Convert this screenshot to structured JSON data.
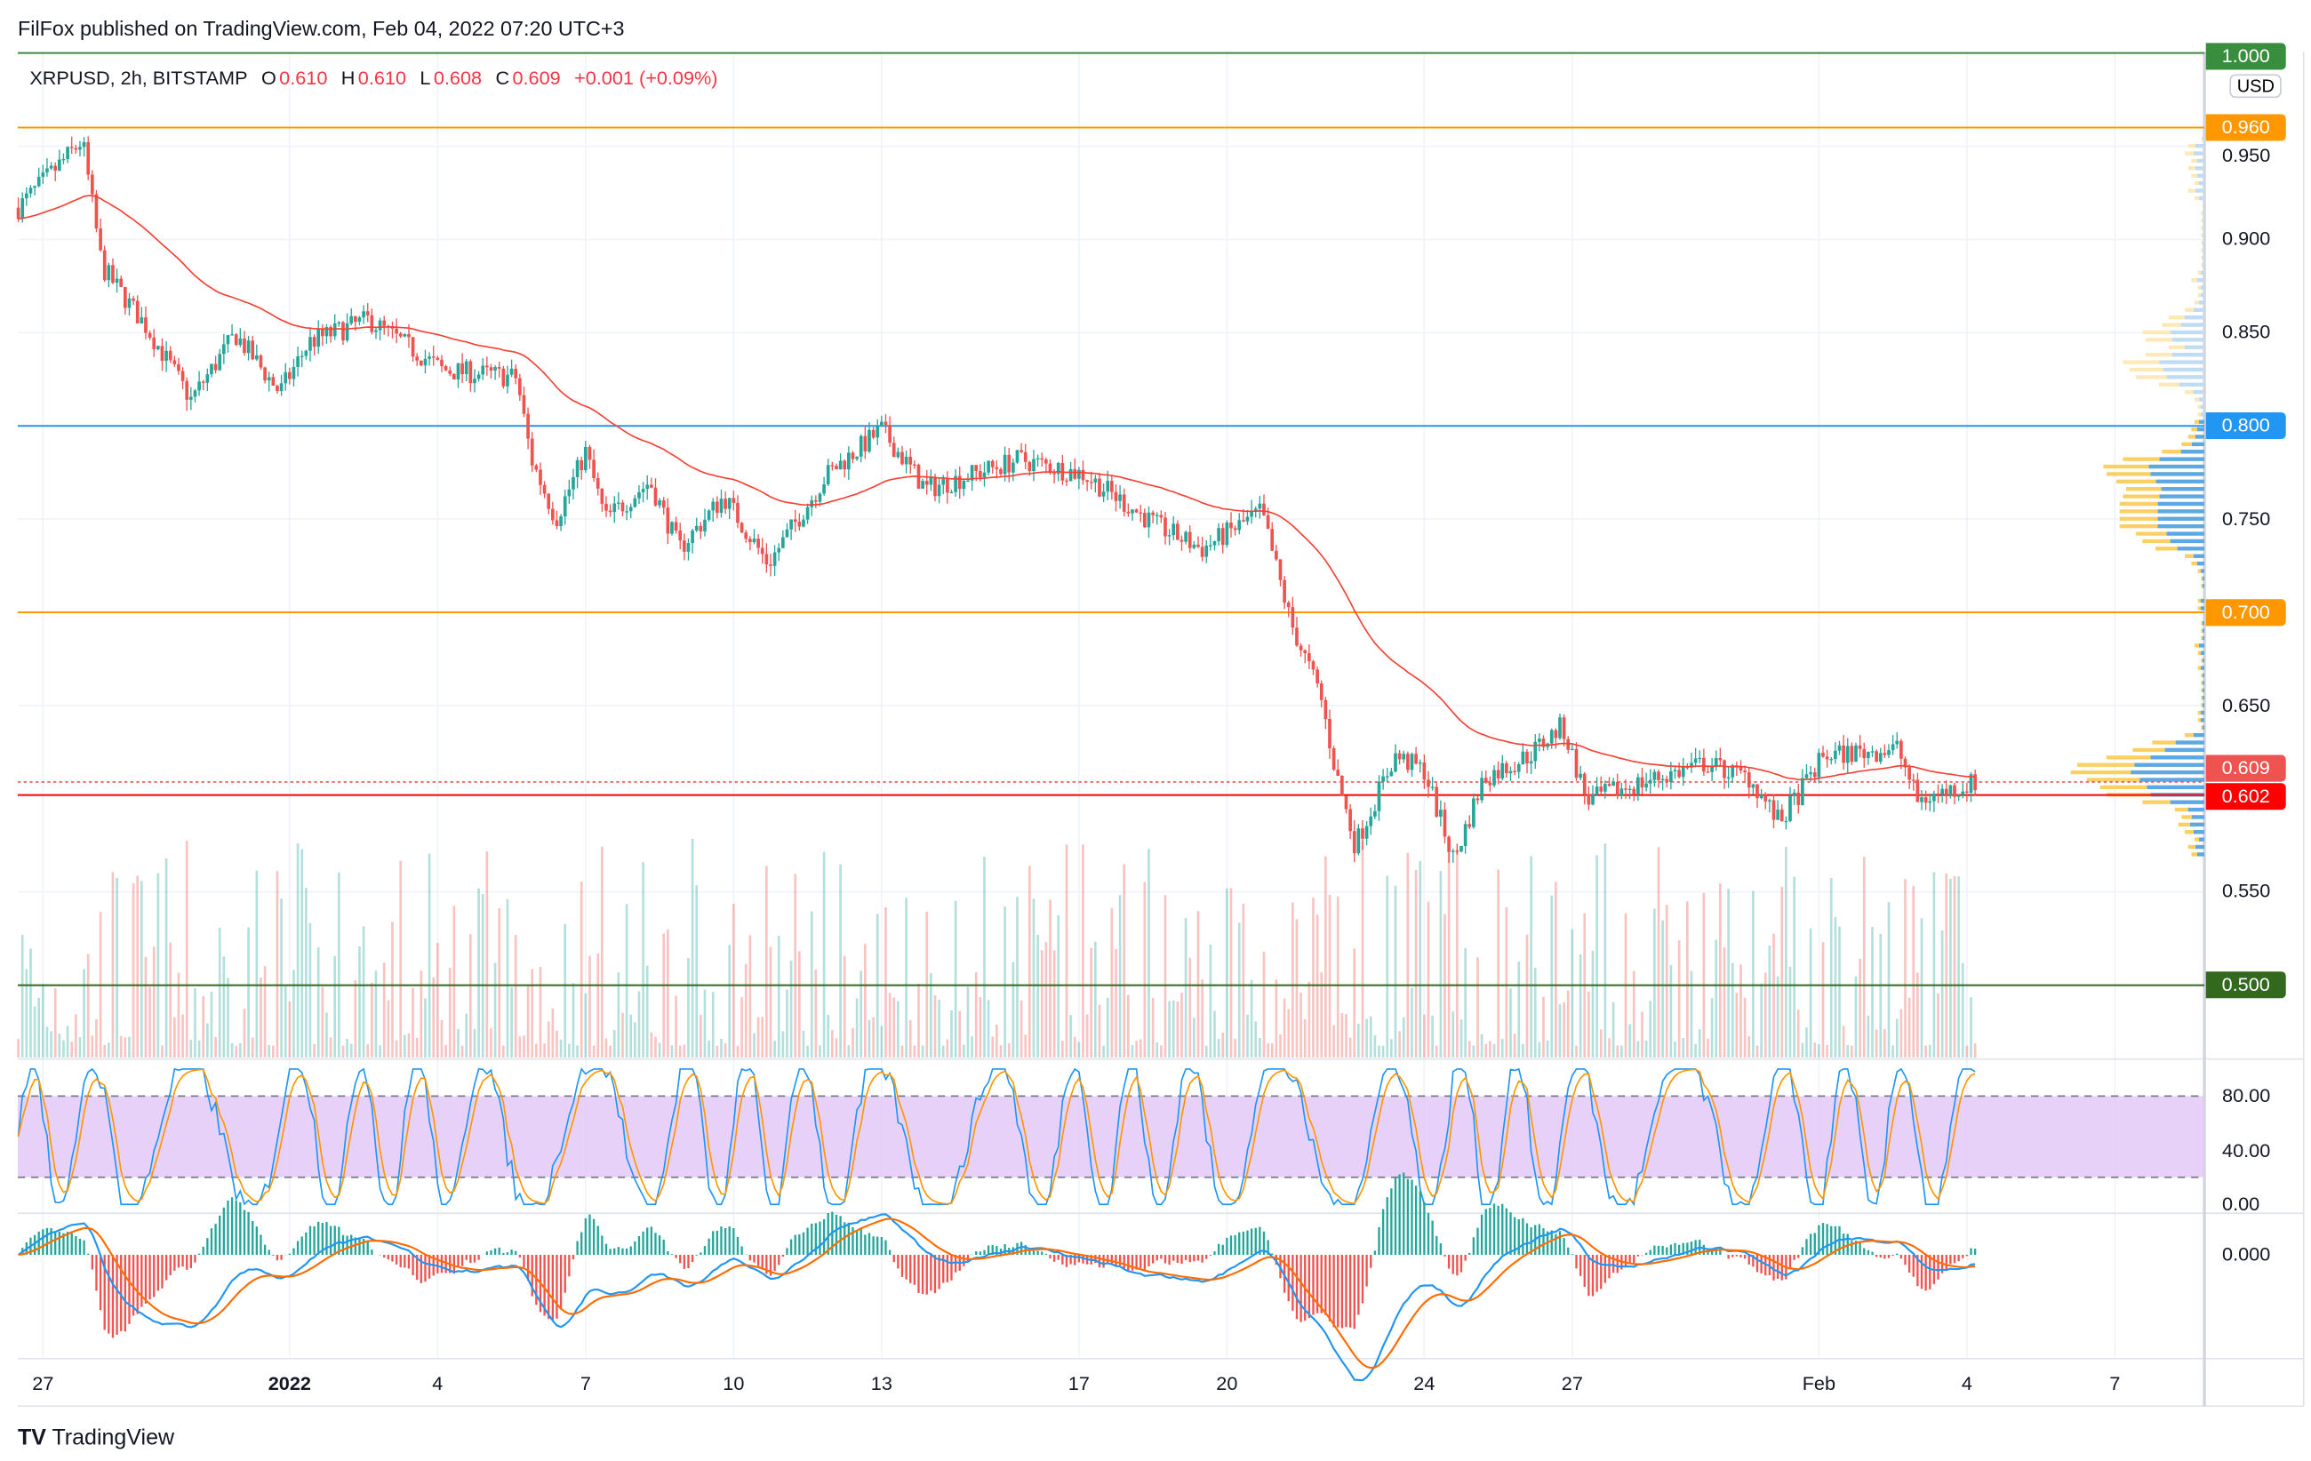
{
  "header": {
    "publisher": "FilFox published on TradingView.com, Feb 04, 2022 07:20 UTC+3"
  },
  "legend": {
    "symbol": "XRPUSD, 2h, BITSTAMP",
    "o_label": "O",
    "o": "0.610",
    "h_label": "H",
    "h": "0.610",
    "l_label": "L",
    "l": "0.608",
    "c_label": "C",
    "c": "0.609",
    "change": "+0.001 (+0.09%)"
  },
  "price_axis": {
    "currency": "USD",
    "ticks": [
      "0.950",
      "0.900",
      "0.850",
      "0.750",
      "0.650",
      "0.550"
    ]
  },
  "levels": [
    {
      "label": "1.000",
      "price": 1.0,
      "color": "#388e3c"
    },
    {
      "label": "0.960",
      "price": 0.96,
      "color": "#ff9800"
    },
    {
      "label": "0.800",
      "price": 0.8,
      "color": "#2196f3"
    },
    {
      "label": "0.700",
      "price": 0.7,
      "color": "#ff9800"
    },
    {
      "label": "0.609",
      "price": 0.609,
      "color": "#ef5350"
    },
    {
      "label": "0.602",
      "price": 0.602,
      "color": "#ff0000"
    },
    {
      "label": "0.500",
      "price": 0.5,
      "color": "#33691e"
    }
  ],
  "rsi_axis": {
    "ticks": [
      "80.00",
      "40.00",
      "0.00"
    ]
  },
  "macd_axis": {
    "ticks": [
      "0.000"
    ]
  },
  "time_axis": {
    "labels": [
      {
        "text": "27",
        "day": 0
      },
      {
        "text": "2022",
        "day": 5
      },
      {
        "text": "4",
        "day": 8
      },
      {
        "text": "7",
        "day": 11
      },
      {
        "text": "10",
        "day": 14
      },
      {
        "text": "13",
        "day": 17
      },
      {
        "text": "17",
        "day": 21
      },
      {
        "text": "20",
        "day": 24
      },
      {
        "text": "24",
        "day": 28
      },
      {
        "text": "27",
        "day": 31
      },
      {
        "text": "Feb",
        "day": 36
      },
      {
        "text": "4",
        "day": 39
      },
      {
        "text": "7",
        "day": 42
      }
    ]
  },
  "footer": {
    "brand": "TradingView"
  },
  "chart_data": {
    "type": "candlestick",
    "title": "XRPUSD, 2h, BITSTAMP",
    "x_unit": "days since Dec 27, 2021",
    "ylim": [
      0.5,
      1.0
    ],
    "price_path": [
      [
        -0.5,
        0.917
      ],
      [
        0.8,
        0.953
      ],
      [
        1.2,
        0.885
      ],
      [
        2.1,
        0.853
      ],
      [
        3.0,
        0.814
      ],
      [
        3.9,
        0.849
      ],
      [
        4.8,
        0.818
      ],
      [
        5.4,
        0.845
      ],
      [
        6.6,
        0.857
      ],
      [
        8.1,
        0.83
      ],
      [
        9.6,
        0.826
      ],
      [
        9.9,
        0.782
      ],
      [
        10.4,
        0.75
      ],
      [
        11.0,
        0.786
      ],
      [
        11.4,
        0.75
      ],
      [
        12.3,
        0.77
      ],
      [
        12.9,
        0.734
      ],
      [
        13.8,
        0.762
      ],
      [
        14.7,
        0.726
      ],
      [
        15.9,
        0.774
      ],
      [
        17.0,
        0.798
      ],
      [
        17.9,
        0.766
      ],
      [
        19.8,
        0.782
      ],
      [
        21.1,
        0.774
      ],
      [
        22.6,
        0.746
      ],
      [
        23.5,
        0.734
      ],
      [
        24.7,
        0.754
      ],
      [
        25.3,
        0.694
      ],
      [
        25.9,
        0.655
      ],
      [
        26.2,
        0.615
      ],
      [
        26.6,
        0.575
      ],
      [
        27.4,
        0.623
      ],
      [
        28.0,
        0.615
      ],
      [
        28.6,
        0.567
      ],
      [
        29.2,
        0.611
      ],
      [
        30.1,
        0.623
      ],
      [
        30.8,
        0.639
      ],
      [
        31.3,
        0.599
      ],
      [
        32.2,
        0.607
      ],
      [
        33.7,
        0.619
      ],
      [
        34.6,
        0.611
      ],
      [
        35.2,
        0.587
      ],
      [
        36.1,
        0.623
      ],
      [
        37.6,
        0.627
      ],
      [
        38.0,
        0.599
      ],
      [
        39.2,
        0.609
      ]
    ],
    "indicators": [
      "Volume",
      "EMA",
      "Stoch RSI (80/20)",
      "MACD",
      "Volume Profile"
    ]
  }
}
